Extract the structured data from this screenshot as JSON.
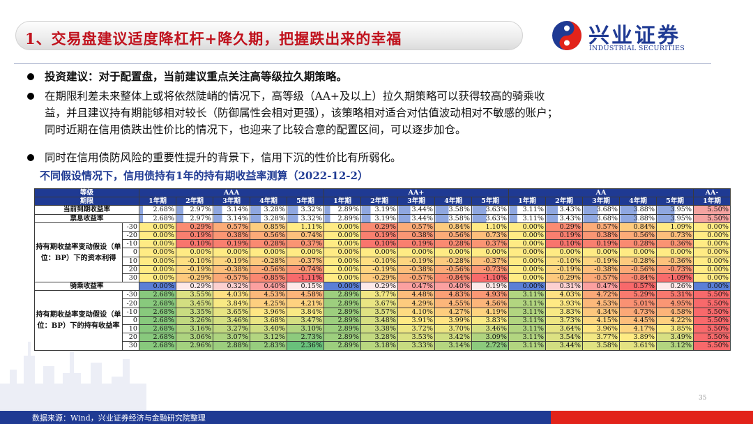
{
  "title": "1、交易盘建议适度降杠杆+降久期，把握跌出来的幸福",
  "brand": {
    "cn": "兴业证券",
    "en": "INDUSTRIAL SECURITIES"
  },
  "bullets": [
    {
      "lines": [
        "投资建议：对于配置盘，当前建议重点关注高等级拉久期策略。"
      ]
    },
    {
      "lines": [
        "在期限利差未来整体上或将依然陡峭的情况下，高等级（AA+及以上）拉久期策略可以获得较高的骑乘收",
        "益，并且建议持有期能够相对较长（防御属性会相对更强），该策略相对适合对估值波动相对不敏感的账户；",
        "同时近期在信用债跌出性价比的情况下，也迎来了比较合意的配置区间，可以逐步加仓。"
      ]
    },
    {
      "lines": [
        "同时在信用债防风险的重要性提升的背景下，信用下沉的性价比有所弱化。"
      ]
    }
  ],
  "caption": "不同假设情况下，信用债持有1年的持有期收益率测算（2022-12-2）",
  "table": {
    "grade_label": "等级",
    "term_label": "期限",
    "grades": [
      "AAA",
      "AA+",
      "AA",
      "AA-"
    ],
    "terms": [
      "1年期",
      "2年期",
      "3年期",
      "4年期",
      "5年期",
      "1年期",
      "2年期",
      "3年期",
      "4年期",
      "5年期",
      "1年期",
      "2年期",
      "3年期",
      "4年期",
      "5年期",
      "1年期"
    ],
    "rows": [
      {
        "label": "当前到期收益率",
        "values": [
          "2.68%",
          "2.97%",
          "3.14%",
          "3.28%",
          "3.32%",
          "2.89%",
          "3.19%",
          "3.44%",
          "3.58%",
          "3.63%",
          "3.11%",
          "3.43%",
          "3.68%",
          "3.88%",
          "3.95%",
          "5.50%"
        ]
      },
      {
        "label": "票息收益率",
        "values": [
          "2.68%",
          "2.97%",
          "3.14%",
          "3.28%",
          "3.32%",
          "2.89%",
          "3.19%",
          "3.44%",
          "3.58%",
          "3.63%",
          "3.11%",
          "3.43%",
          "3.68%",
          "3.88%",
          "3.95%",
          "5.50%"
        ]
      }
    ],
    "block1": {
      "label": "持有期收益率变动假设（单位：BP）下的资本利得",
      "rows": [
        {
          "bp": "-30",
          "values": [
            "0.00%",
            "0.29%",
            "0.57%",
            "0.85%",
            "1.11%",
            "0.00%",
            "0.29%",
            "0.57%",
            "0.84%",
            "1.10%",
            "0.00%",
            "0.29%",
            "0.57%",
            "0.84%",
            "1.09%",
            "0.00%"
          ]
        },
        {
          "bp": "-20",
          "values": [
            "0.00%",
            "0.19%",
            "0.38%",
            "0.56%",
            "0.74%",
            "0.00%",
            "0.19%",
            "0.38%",
            "0.56%",
            "0.73%",
            "0.00%",
            "0.19%",
            "0.38%",
            "0.56%",
            "0.73%",
            "0.00%"
          ]
        },
        {
          "bp": "-10",
          "values": [
            "0.00%",
            "0.10%",
            "0.19%",
            "0.28%",
            "0.37%",
            "0.00%",
            "0.10%",
            "0.19%",
            "0.28%",
            "0.37%",
            "0.00%",
            "0.10%",
            "0.19%",
            "0.28%",
            "0.36%",
            "0.00%"
          ]
        },
        {
          "bp": "0",
          "values": [
            "0.00%",
            "0.00%",
            "0.00%",
            "0.00%",
            "0.00%",
            "0.00%",
            "0.00%",
            "0.00%",
            "0.00%",
            "0.00%",
            "0.00%",
            "0.00%",
            "0.00%",
            "0.00%",
            "0.00%",
            "0.00%"
          ]
        },
        {
          "bp": "10",
          "values": [
            "0.00%",
            "-0.10%",
            "-0.19%",
            "-0.28%",
            "-0.37%",
            "0.00%",
            "-0.10%",
            "-0.19%",
            "-0.28%",
            "-0.37%",
            "0.00%",
            "-0.10%",
            "-0.19%",
            "-0.28%",
            "-0.36%",
            "0.00%"
          ]
        },
        {
          "bp": "20",
          "values": [
            "0.00%",
            "-0.19%",
            "-0.38%",
            "-0.56%",
            "-0.74%",
            "0.00%",
            "-0.19%",
            "-0.38%",
            "-0.56%",
            "-0.73%",
            "0.00%",
            "-0.19%",
            "-0.38%",
            "-0.56%",
            "-0.73%",
            "0.00%"
          ]
        },
        {
          "bp": "30",
          "values": [
            "0.00%",
            "-0.29%",
            "-0.57%",
            "-0.85%",
            "-1.11%",
            "0.00%",
            "-0.29%",
            "-0.57%",
            "-0.84%",
            "-1.10%",
            "0.00%",
            "-0.29%",
            "-0.57%",
            "-0.84%",
            "-1.09%",
            "0.00%"
          ]
        }
      ]
    },
    "ride_row": {
      "label": "骑乘收益率",
      "values": [
        "0.00%",
        "0.29%",
        "0.32%",
        "0.40%",
        "0.15%",
        "0.00%",
        "0.29%",
        "0.47%",
        "0.40%",
        "0.19%",
        "0.00%",
        "0.31%",
        "0.47%",
        "0.57%",
        "0.26%",
        "0.00%"
      ]
    },
    "block2": {
      "label": "持有期收益率变动假设（单位：BP）下的持有收益率",
      "rows": [
        {
          "bp": "-30",
          "values": [
            "2.68%",
            "3.55%",
            "4.03%",
            "4.53%",
            "4.58%",
            "2.89%",
            "3.77%",
            "4.48%",
            "4.83%",
            "4.93%",
            "3.11%",
            "4.03%",
            "4.72%",
            "5.29%",
            "5.31%",
            "5.50%"
          ]
        },
        {
          "bp": "-20",
          "values": [
            "2.68%",
            "3.45%",
            "3.84%",
            "4.25%",
            "4.21%",
            "2.89%",
            "3.67%",
            "4.29%",
            "4.55%",
            "4.56%",
            "3.11%",
            "3.93%",
            "4.53%",
            "5.01%",
            "4.95%",
            "5.50%"
          ]
        },
        {
          "bp": "-10",
          "values": [
            "2.68%",
            "3.35%",
            "3.65%",
            "3.96%",
            "3.84%",
            "2.89%",
            "3.57%",
            "4.10%",
            "4.27%",
            "4.19%",
            "3.11%",
            "3.83%",
            "4.34%",
            "4.73%",
            "4.58%",
            "5.50%"
          ]
        },
        {
          "bp": "0",
          "values": [
            "2.68%",
            "3.26%",
            "3.46%",
            "3.68%",
            "3.47%",
            "2.89%",
            "3.48%",
            "3.91%",
            "3.99%",
            "3.83%",
            "3.11%",
            "3.73%",
            "4.15%",
            "4.45%",
            "4.22%",
            "5.50%"
          ]
        },
        {
          "bp": "10",
          "values": [
            "2.68%",
            "3.16%",
            "3.27%",
            "3.40%",
            "3.10%",
            "2.89%",
            "3.38%",
            "3.72%",
            "3.70%",
            "3.46%",
            "3.11%",
            "3.64%",
            "3.96%",
            "4.17%",
            "3.85%",
            "5.50%"
          ]
        },
        {
          "bp": "20",
          "values": [
            "2.68%",
            "3.06%",
            "3.07%",
            "3.12%",
            "2.73%",
            "2.89%",
            "3.28%",
            "3.53%",
            "3.42%",
            "3.09%",
            "3.11%",
            "3.54%",
            "3.77%",
            "3.89%",
            "3.49%",
            "5.50%"
          ]
        },
        {
          "bp": "30",
          "values": [
            "2.68%",
            "2.96%",
            "2.88%",
            "2.83%",
            "2.36%",
            "2.89%",
            "3.18%",
            "3.33%",
            "3.14%",
            "2.72%",
            "3.11%",
            "3.44%",
            "3.58%",
            "3.61%",
            "3.12%",
            "5.50%"
          ]
        }
      ]
    }
  },
  "page_number": "35",
  "source": "数据来源：Wind，兴业证券经济与金融研究院整理",
  "colors": {
    "brand_blue": "#1f3a93",
    "title_red": "#c0121d",
    "accent_red": "#e2231a"
  }
}
